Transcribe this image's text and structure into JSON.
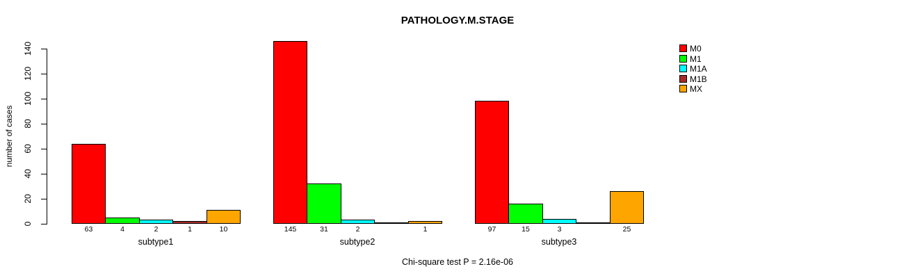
{
  "title": "PATHOLOGY.M.STAGE",
  "footer_note": "Chi-square test P = 2.16e-06",
  "chart_data": {
    "type": "bar",
    "grouped": true,
    "title": "PATHOLOGY.M.STAGE",
    "xlabel": "",
    "ylabel": "number of cases",
    "ylim": [
      0,
      140
    ],
    "yticks": [
      0,
      20,
      40,
      60,
      80,
      100,
      120,
      140
    ],
    "grid": false,
    "legend_position": "top-right",
    "categories": [
      "subtype1",
      "subtype2",
      "subtype3"
    ],
    "series": [
      {
        "name": "M0",
        "color": "#FF0000",
        "values": [
          63,
          145,
          97
        ]
      },
      {
        "name": "M1",
        "color": "#00FF00",
        "values": [
          4,
          31,
          15
        ]
      },
      {
        "name": "M1A",
        "color": "#00FFFF",
        "values": [
          2,
          2,
          3
        ]
      },
      {
        "name": "M1B",
        "color": "#A52A2A",
        "values": [
          1,
          0,
          0
        ]
      },
      {
        "name": "MX",
        "color": "#FFA500",
        "values": [
          10,
          1,
          25
        ]
      }
    ],
    "bar_value_labels": [
      [
        "63",
        "4",
        "2",
        "1",
        "10"
      ],
      [
        "145",
        "31",
        "2",
        "",
        "1"
      ],
      [
        "97",
        "15",
        "3",
        "",
        "25"
      ]
    ],
    "annotation": "Chi-square test P = 2.16e-06",
    "axis_color": "#000000"
  }
}
